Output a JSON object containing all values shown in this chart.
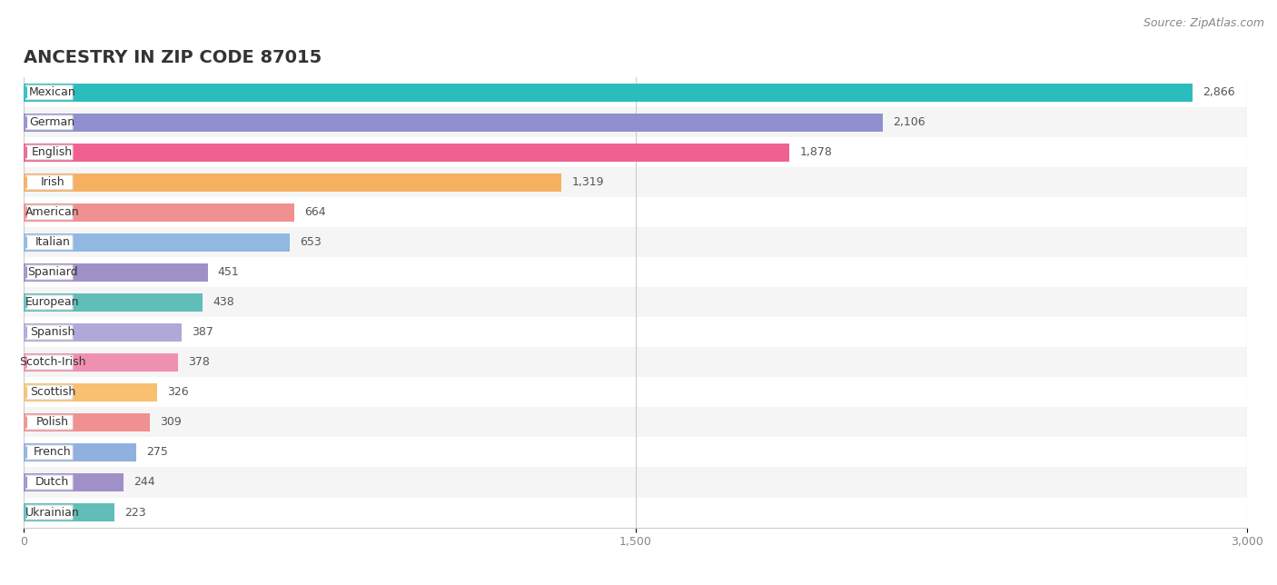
{
  "title": "ANCESTRY IN ZIP CODE 87015",
  "source": "Source: ZipAtlas.com",
  "categories": [
    "Mexican",
    "German",
    "English",
    "Irish",
    "American",
    "Italian",
    "Spaniard",
    "European",
    "Spanish",
    "Scotch-Irish",
    "Scottish",
    "Polish",
    "French",
    "Dutch",
    "Ukrainian"
  ],
  "values": [
    2866,
    2106,
    1878,
    1319,
    664,
    653,
    451,
    438,
    387,
    378,
    326,
    309,
    275,
    244,
    223
  ],
  "colors": [
    "#2BBDBC",
    "#9090D0",
    "#F06090",
    "#F5B060",
    "#F09090",
    "#90B8E0",
    "#A090C8",
    "#60BDB8",
    "#B0A8D8",
    "#F090B0",
    "#F8C070",
    "#F09090",
    "#90B0E0",
    "#A090C8",
    "#60BDB8"
  ],
  "xlim": [
    0,
    3000
  ],
  "xticks": [
    0,
    1500,
    3000
  ],
  "xtick_labels": [
    "0",
    "1,500",
    "3,000"
  ],
  "title_fontsize": 14,
  "source_fontsize": 9,
  "label_fontsize": 9,
  "value_fontsize": 9,
  "bar_height": 0.62,
  "background_color": "#ffffff",
  "row_alt_color": "#f5f5f5"
}
